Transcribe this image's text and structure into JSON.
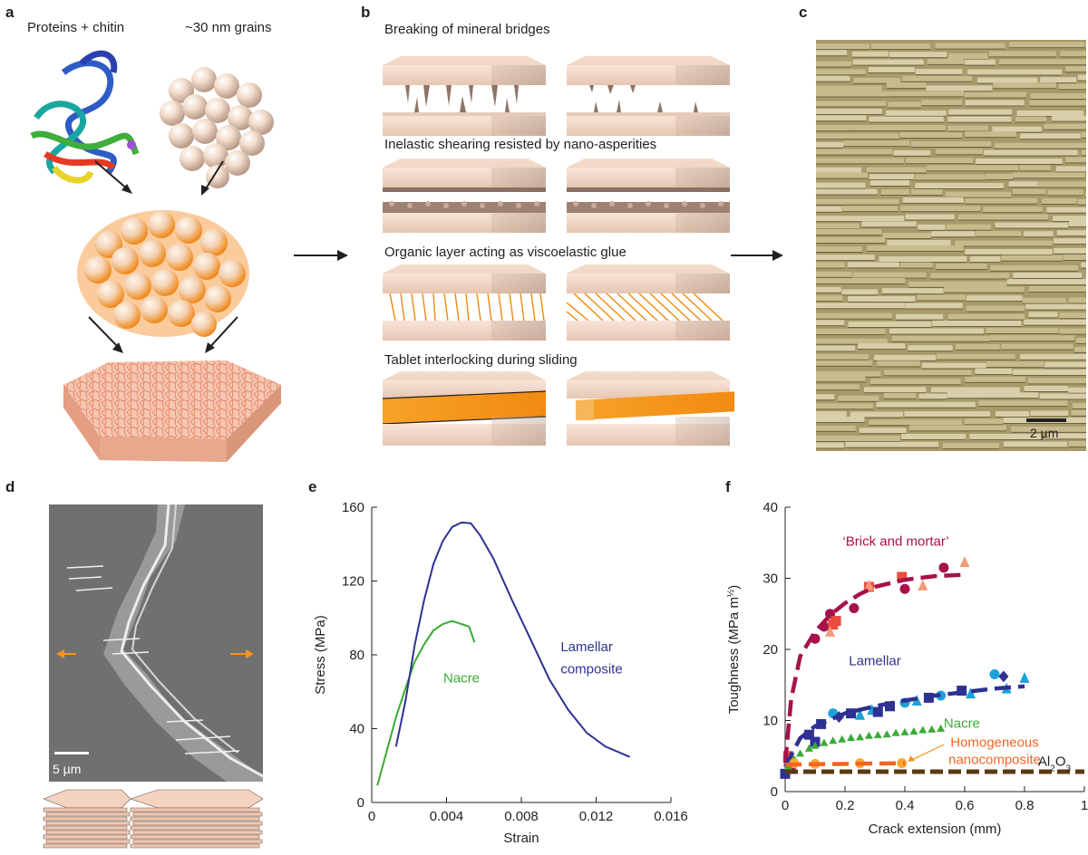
{
  "panels": {
    "a": {
      "label": "a",
      "proteins_label": "Proteins + chitin",
      "grains_label": "~30 nm grains"
    },
    "b": {
      "label": "b",
      "mechanisms": [
        "Breaking of mineral bridges",
        "Inelastic shearing resisted by nano-asperities",
        "Organic layer acting as viscoelastic glue",
        "Tablet interlocking during sliding"
      ]
    },
    "c": {
      "label": "c",
      "scale_bar": "2 µm"
    },
    "d": {
      "label": "d",
      "scale_bar": "5 µm"
    },
    "e": {
      "label": "e"
    },
    "f": {
      "label": "f"
    }
  },
  "colors": {
    "lamellar_blue": "#2e3192",
    "nacre_green": "#3aaa35",
    "brick_red": "#a6124a",
    "homog_orange": "#f26522",
    "al2o3_brown": "#5b3a12",
    "cyan": "#1ba1d8",
    "tablet_peach": "#f3d5c0",
    "arrow_orange": "#f7941d"
  },
  "chart_data": [
    {
      "panel": "e",
      "type": "line",
      "xlabel": "Strain",
      "ylabel": "Stress (MPa)",
      "xlim": [
        0,
        0.016
      ],
      "ylim": [
        0,
        160
      ],
      "x_ticks": [
        "0",
        "0.004",
        "0.008",
        "0.012",
        "0.016"
      ],
      "y_ticks": [
        "0",
        "40",
        "80",
        "120",
        "160"
      ],
      "series": [
        {
          "name": "Nacre",
          "color": "#3aaa35",
          "x": [
            0.0003,
            0.0008,
            0.0013,
            0.0018,
            0.0023,
            0.0028,
            0.0033,
            0.0038,
            0.0043,
            0.0048,
            0.0052,
            0.0055
          ],
          "y": [
            9,
            28,
            46,
            62,
            76,
            86,
            93,
            97,
            98,
            97,
            95,
            87
          ]
        },
        {
          "name": "Lamellar composite",
          "label_lines": [
            "Lamellar",
            "composite"
          ],
          "color": "#2e3192",
          "x": [
            0.0013,
            0.0018,
            0.0023,
            0.0028,
            0.0033,
            0.0038,
            0.0043,
            0.0048,
            0.0053,
            0.0058,
            0.0065,
            0.0075,
            0.0085,
            0.0095,
            0.0105,
            0.0115,
            0.0125,
            0.0138
          ],
          "y": [
            30,
            55,
            85,
            110,
            129,
            142,
            149,
            152,
            151,
            145,
            132,
            110,
            88,
            67,
            50,
            38,
            30,
            25
          ]
        }
      ]
    },
    {
      "panel": "f",
      "type": "scatter",
      "xlabel": "Crack extension (mm)",
      "ylabel": "Toughness (MPa m",
      "ylabel_exp": "½",
      "ylabel_close": ")",
      "xlim": [
        0,
        1
      ],
      "ylim": [
        0,
        40
      ],
      "x_ticks": [
        "0",
        "0.2",
        "0.4",
        "0.6",
        "0.8",
        "1"
      ],
      "y_ticks": [
        "0",
        "10",
        "20",
        "30",
        "40"
      ],
      "series": [
        {
          "name": "‘Brick and mortar’",
          "color": "#a6124a",
          "fit_x": [
            0.0,
            0.02,
            0.05,
            0.1,
            0.15,
            0.2,
            0.25,
            0.3,
            0.4,
            0.5,
            0.6
          ],
          "fit_y": [
            4,
            13,
            19,
            22.5,
            24.8,
            26.5,
            27.8,
            28.8,
            29.8,
            30.3,
            30.5
          ],
          "points": [
            {
              "x": 0.01,
              "y": 5,
              "m": "square",
              "c": "#e84d3d"
            },
            {
              "x": 0.02,
              "y": 3.5,
              "m": "circle",
              "c": "#a6124a"
            },
            {
              "x": 0.1,
              "y": 21.5,
              "m": "circle",
              "c": "#a6124a"
            },
            {
              "x": 0.13,
              "y": 23.2,
              "m": "circle",
              "c": "#a6124a"
            },
            {
              "x": 0.15,
              "y": 25,
              "m": "circle",
              "c": "#a6124a"
            },
            {
              "x": 0.16,
              "y": 23.5,
              "m": "square",
              "c": "#e84d3d"
            },
            {
              "x": 0.17,
              "y": 24,
              "m": "square",
              "c": "#e84d3d"
            },
            {
              "x": 0.15,
              "y": 22.5,
              "m": "triangle",
              "c": "#f29b7a"
            },
            {
              "x": 0.23,
              "y": 25.8,
              "m": "circle",
              "c": "#a6124a"
            },
            {
              "x": 0.28,
              "y": 28.8,
              "m": "square",
              "c": "#e84d3d"
            },
            {
              "x": 0.28,
              "y": 29,
              "m": "triangle",
              "c": "#f29b7a"
            },
            {
              "x": 0.39,
              "y": 30.2,
              "m": "square",
              "c": "#e84d3d"
            },
            {
              "x": 0.4,
              "y": 28.5,
              "m": "circle",
              "c": "#a6124a"
            },
            {
              "x": 0.46,
              "y": 29,
              "m": "triangle",
              "c": "#f29b7a"
            },
            {
              "x": 0.53,
              "y": 31.5,
              "m": "circle",
              "c": "#a6124a"
            },
            {
              "x": 0.6,
              "y": 32.3,
              "m": "triangle",
              "c": "#f29b7a"
            }
          ]
        },
        {
          "name": "Lamellar",
          "color": "#2e3192",
          "fit_x": [
            0.0,
            0.05,
            0.1,
            0.2,
            0.3,
            0.4,
            0.5,
            0.6,
            0.7,
            0.8
          ],
          "fit_y": [
            3.5,
            7.5,
            9.2,
            11.0,
            12.0,
            12.8,
            13.5,
            14.0,
            14.5,
            14.8
          ],
          "points": [
            {
              "x": 0.0,
              "y": 2.5,
              "m": "square",
              "c": "#2e3192"
            },
            {
              "x": 0.08,
              "y": 8,
              "m": "square",
              "c": "#2e3192"
            },
            {
              "x": 0.1,
              "y": 7,
              "m": "square",
              "c": "#2e3192"
            },
            {
              "x": 0.12,
              "y": 9.5,
              "m": "square",
              "c": "#2e3192"
            },
            {
              "x": 0.16,
              "y": 11,
              "m": "circle",
              "c": "#1ba1d8"
            },
            {
              "x": 0.18,
              "y": 10.5,
              "m": "diamond",
              "c": "#2e3192"
            },
            {
              "x": 0.22,
              "y": 11,
              "m": "square",
              "c": "#2e3192"
            },
            {
              "x": 0.25,
              "y": 10.8,
              "m": "triangle",
              "c": "#1ba1d8"
            },
            {
              "x": 0.29,
              "y": 11.5,
              "m": "triangle",
              "c": "#1ba1d8"
            },
            {
              "x": 0.31,
              "y": 11.2,
              "m": "square",
              "c": "#2e3192"
            },
            {
              "x": 0.35,
              "y": 12,
              "m": "square",
              "c": "#2e3192"
            },
            {
              "x": 0.4,
              "y": 12.5,
              "m": "circle",
              "c": "#1ba1d8"
            },
            {
              "x": 0.44,
              "y": 12.8,
              "m": "triangle",
              "c": "#1ba1d8"
            },
            {
              "x": 0.48,
              "y": 13.2,
              "m": "square",
              "c": "#2e3192"
            },
            {
              "x": 0.52,
              "y": 13.5,
              "m": "circle",
              "c": "#1ba1d8"
            },
            {
              "x": 0.59,
              "y": 14.2,
              "m": "square",
              "c": "#2e3192"
            },
            {
              "x": 0.62,
              "y": 13.8,
              "m": "triangle",
              "c": "#1ba1d8"
            },
            {
              "x": 0.7,
              "y": 16.5,
              "m": "circle",
              "c": "#1ba1d8"
            },
            {
              "x": 0.73,
              "y": 16.2,
              "m": "diamond",
              "c": "#2e3192"
            },
            {
              "x": 0.74,
              "y": 14.5,
              "m": "triangle",
              "c": "#1ba1d8"
            },
            {
              "x": 0.8,
              "y": 16,
              "m": "triangle",
              "c": "#1ba1d8"
            }
          ]
        },
        {
          "name": "Nacre",
          "color": "#3aaa35",
          "fit_x": [
            0.01,
            0.03,
            0.05,
            0.08,
            0.1,
            0.13,
            0.16,
            0.19,
            0.22,
            0.25,
            0.28,
            0.31,
            0.34,
            0.37,
            0.4,
            0.43,
            0.46,
            0.49,
            0.52
          ],
          "fit_y": [
            3.5,
            4.5,
            5.3,
            6.0,
            6.4,
            6.8,
            7.1,
            7.3,
            7.5,
            7.6,
            7.8,
            7.9,
            8.0,
            8.2,
            8.3,
            8.4,
            8.6,
            8.7,
            8.8
          ]
        },
        {
          "name": "Homogeneous nanocomposite",
          "label_lines": [
            "Homogeneous",
            "nanocomposite"
          ],
          "color": "#f26522",
          "fit_x": [
            0.0,
            0.4
          ],
          "fit_y": [
            3.8,
            4.0
          ],
          "points": [
            {
              "x": 0.03,
              "y": 4,
              "m": "circle",
              "c": "#f7a833"
            },
            {
              "x": 0.1,
              "y": 3.9,
              "m": "circle",
              "c": "#f7a833"
            },
            {
              "x": 0.25,
              "y": 4,
              "m": "circle",
              "c": "#f7a833"
            },
            {
              "x": 0.39,
              "y": 4,
              "m": "circle",
              "c": "#f7a833"
            }
          ]
        },
        {
          "name": "Al2O3",
          "label_main": "Al",
          "label_sub": "2",
          "label_main2": "O",
          "label_sub2": "3",
          "color": "#5b3a12",
          "fit_x": [
            0.0,
            1.0
          ],
          "fit_y": [
            2.8,
            2.8
          ]
        }
      ]
    }
  ]
}
